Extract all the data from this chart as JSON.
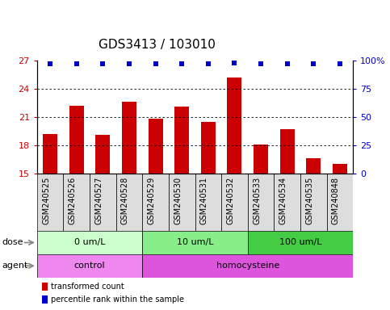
{
  "title": "GDS3413 / 103010",
  "samples": [
    "GSM240525",
    "GSM240526",
    "GSM240527",
    "GSM240528",
    "GSM240529",
    "GSM240530",
    "GSM240531",
    "GSM240532",
    "GSM240533",
    "GSM240534",
    "GSM240535",
    "GSM240848"
  ],
  "bar_values": [
    19.2,
    22.2,
    19.1,
    22.6,
    20.8,
    22.1,
    20.5,
    25.2,
    18.1,
    19.7,
    16.6,
    16.0
  ],
  "percentile_ranks": [
    97,
    97,
    97,
    97,
    97,
    97,
    97,
    98,
    97,
    97,
    97,
    97
  ],
  "ylim_left": [
    15,
    27
  ],
  "ylim_right": [
    0,
    100
  ],
  "yticks_left": [
    15,
    18,
    21,
    24,
    27
  ],
  "yticks_right": [
    0,
    25,
    50,
    75,
    100
  ],
  "ytick_labels_right": [
    "0",
    "25",
    "50",
    "75",
    "100%"
  ],
  "bar_color": "#cc0000",
  "dot_color": "#0000cc",
  "grid_ticks": [
    18,
    21,
    24
  ],
  "dose_groups": [
    {
      "label": "0 um/L",
      "start": 0,
      "end": 4,
      "color": "#ccffcc"
    },
    {
      "label": "10 um/L",
      "start": 4,
      "end": 8,
      "color": "#88ee88"
    },
    {
      "label": "100 um/L",
      "start": 8,
      "end": 12,
      "color": "#44cc44"
    }
  ],
  "agent_groups": [
    {
      "label": "control",
      "start": 0,
      "end": 4,
      "color": "#ee88ee"
    },
    {
      "label": "homocysteine",
      "start": 4,
      "end": 12,
      "color": "#dd55dd"
    }
  ],
  "dose_label": "dose",
  "agent_label": "agent",
  "legend_bar_label": "transformed count",
  "legend_dot_label": "percentile rank within the sample",
  "title_fontsize": 11,
  "tick_fontsize": 8,
  "label_fontsize": 8,
  "sample_fontsize": 7,
  "bar_width": 0.55
}
